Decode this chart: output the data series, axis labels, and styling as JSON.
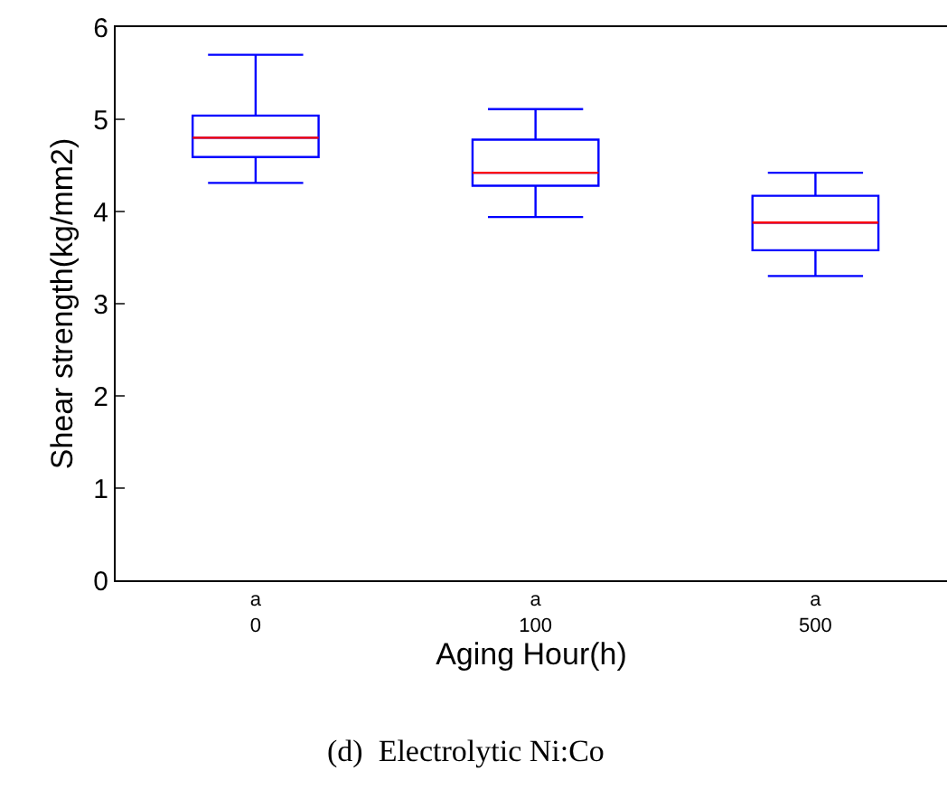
{
  "chart_data": {
    "type": "box",
    "xlabel": "Aging Hour(h)",
    "ylabel": "Shear strength(kg/mm2)",
    "categories": [
      "a\n0",
      "a\n100",
      "a\n500"
    ],
    "series": [
      {
        "color": "#0000ff",
        "boxes": [
          {
            "low": 4.31,
            "q1": 4.59,
            "median": 4.8,
            "q3": 5.04,
            "high": 5.7
          },
          {
            "low": 3.94,
            "q1": 4.28,
            "median": 4.42,
            "q3": 4.78,
            "high": 5.11
          },
          {
            "low": 3.3,
            "q1": 3.58,
            "median": 3.88,
            "q3": 4.17,
            "high": 4.42
          }
        ]
      }
    ],
    "ylim": [
      0,
      6
    ],
    "yticks": [
      0,
      1,
      2,
      3,
      4,
      5,
      6
    ],
    "annotations": [
      "(d)  Electrolytic Ni:Co"
    ]
  }
}
